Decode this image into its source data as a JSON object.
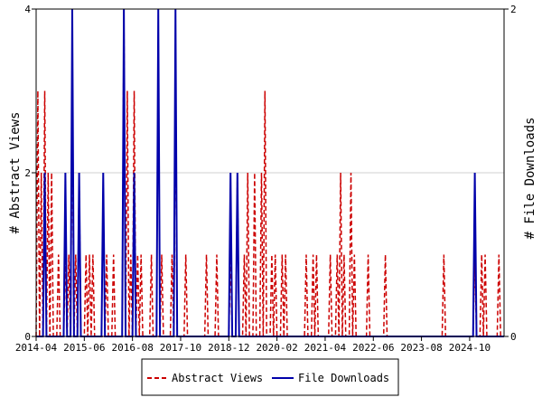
{
  "chart_data": {
    "type": "line",
    "y_left_label": "# Abstract Views",
    "y_right_label": "# File Downloads",
    "y_left_range": [
      0,
      4
    ],
    "y_right_range": [
      0,
      2
    ],
    "y_left_ticks": [
      "0",
      "2",
      "4"
    ],
    "y_right_ticks": [
      "0",
      "2"
    ],
    "x_start": "2014-04",
    "x_end": "2025-07",
    "x_ticks": [
      "2014-04",
      "2015-06",
      "2016-08",
      "2017-10",
      "2018-12",
      "2020-02",
      "2021-04",
      "2022-06",
      "2023-08",
      "2024-10"
    ],
    "legend": {
      "placement": "bottom"
    },
    "colors": {
      "views": "#cc0000",
      "downloads": "#0000aa"
    },
    "series": [
      {
        "name": "Abstract Views",
        "axis": "left",
        "style": "dashed",
        "points": [
          [
            "2014-04",
            3
          ],
          [
            "2014-05",
            2
          ],
          [
            "2014-06",
            3
          ],
          [
            "2014-07",
            2
          ],
          [
            "2014-08",
            2
          ],
          [
            "2014-09",
            0
          ],
          [
            "2014-10",
            1
          ],
          [
            "2014-11",
            0
          ],
          [
            "2014-12",
            1
          ],
          [
            "2015-01",
            1
          ],
          [
            "2015-02",
            3
          ],
          [
            "2015-03",
            1
          ],
          [
            "2015-04",
            2
          ],
          [
            "2015-05",
            0
          ],
          [
            "2015-06",
            1
          ],
          [
            "2015-07",
            1
          ],
          [
            "2015-08",
            1
          ],
          [
            "2015-09",
            0
          ],
          [
            "2015-10",
            0
          ],
          [
            "2015-11",
            0
          ],
          [
            "2015-12",
            1
          ],
          [
            "2016-01",
            0
          ],
          [
            "2016-02",
            1
          ],
          [
            "2016-03",
            0
          ],
          [
            "2016-04",
            0
          ],
          [
            "2016-05",
            4
          ],
          [
            "2016-06",
            3
          ],
          [
            "2016-07",
            1
          ],
          [
            "2016-08",
            3
          ],
          [
            "2016-09",
            1
          ],
          [
            "2016-10",
            1
          ],
          [
            "2016-11",
            0
          ],
          [
            "2016-12",
            0
          ],
          [
            "2017-01",
            1
          ],
          [
            "2017-02",
            0
          ],
          [
            "2017-03",
            0
          ],
          [
            "2017-04",
            1
          ],
          [
            "2017-05",
            0
          ],
          [
            "2017-06",
            0
          ],
          [
            "2017-07",
            1
          ],
          [
            "2017-08",
            3
          ],
          [
            "2017-09",
            0
          ],
          [
            "2017-10",
            0
          ],
          [
            "2017-11",
            1
          ],
          [
            "2017-12",
            0
          ],
          [
            "2018-01",
            0
          ],
          [
            "2018-02",
            0
          ],
          [
            "2018-03",
            0
          ],
          [
            "2018-04",
            0
          ],
          [
            "2018-05",
            1
          ],
          [
            "2018-06",
            0
          ],
          [
            "2018-07",
            0
          ],
          [
            "2018-08",
            1
          ],
          [
            "2018-09",
            0
          ],
          [
            "2018-10",
            0
          ],
          [
            "2018-11",
            0
          ],
          [
            "2018-12",
            1
          ],
          [
            "2019-01",
            0
          ],
          [
            "2019-02",
            2
          ],
          [
            "2019-03",
            0
          ],
          [
            "2019-04",
            1
          ],
          [
            "2019-05",
            2
          ],
          [
            "2019-06",
            0
          ],
          [
            "2019-07",
            2
          ],
          [
            "2019-08",
            0
          ],
          [
            "2019-09",
            2
          ],
          [
            "2019-10",
            3
          ],
          [
            "2019-11",
            0
          ],
          [
            "2019-12",
            1
          ],
          [
            "2020-01",
            1
          ],
          [
            "2020-02",
            0
          ],
          [
            "2020-03",
            1
          ],
          [
            "2020-04",
            1
          ],
          [
            "2020-05",
            0
          ],
          [
            "2020-06",
            0
          ],
          [
            "2020-07",
            0
          ],
          [
            "2020-08",
            0
          ],
          [
            "2020-09",
            0
          ],
          [
            "2020-10",
            1
          ],
          [
            "2020-11",
            0
          ],
          [
            "2020-12",
            1
          ],
          [
            "2021-01",
            1
          ],
          [
            "2021-02",
            0
          ],
          [
            "2021-03",
            0
          ],
          [
            "2021-04",
            0
          ],
          [
            "2021-05",
            1
          ],
          [
            "2021-06",
            0
          ],
          [
            "2021-07",
            1
          ],
          [
            "2021-08",
            2
          ],
          [
            "2021-09",
            1
          ],
          [
            "2021-10",
            0
          ],
          [
            "2021-11",
            2
          ],
          [
            "2021-12",
            1
          ],
          [
            "2022-01",
            0
          ],
          [
            "2022-02",
            0
          ],
          [
            "2022-03",
            0
          ],
          [
            "2022-04",
            1
          ],
          [
            "2022-05",
            0
          ],
          [
            "2022-06",
            0
          ],
          [
            "2022-07",
            0
          ],
          [
            "2022-08",
            0
          ],
          [
            "2022-09",
            1
          ],
          [
            "2022-10",
            0
          ],
          [
            "2022-11",
            0
          ],
          [
            "2022-12",
            0
          ],
          [
            "2023-01",
            0
          ],
          [
            "2023-02",
            0
          ],
          [
            "2023-03",
            0
          ],
          [
            "2023-04",
            0
          ],
          [
            "2023-05",
            0
          ],
          [
            "2023-06",
            0
          ],
          [
            "2023-07",
            0
          ],
          [
            "2023-08",
            0
          ],
          [
            "2023-09",
            0
          ],
          [
            "2023-10",
            0
          ],
          [
            "2023-11",
            0
          ],
          [
            "2023-12",
            0
          ],
          [
            "2024-01",
            0
          ],
          [
            "2024-02",
            1
          ],
          [
            "2024-03",
            0
          ],
          [
            "2024-04",
            0
          ],
          [
            "2024-05",
            0
          ],
          [
            "2024-06",
            0
          ],
          [
            "2024-07",
            0
          ],
          [
            "2024-08",
            0
          ],
          [
            "2024-09",
            0
          ],
          [
            "2024-10",
            0
          ],
          [
            "2024-11",
            1
          ],
          [
            "2024-12",
            0
          ],
          [
            "2025-01",
            1
          ],
          [
            "2025-02",
            1
          ],
          [
            "2025-03",
            0
          ],
          [
            "2025-04",
            0
          ],
          [
            "2025-05",
            0
          ],
          [
            "2025-06",
            1
          ],
          [
            "2025-07",
            0
          ]
        ]
      },
      {
        "name": "File Downloads",
        "axis": "right",
        "style": "solid",
        "points": [
          [
            "2014-04",
            0
          ],
          [
            "2014-05",
            0
          ],
          [
            "2014-06",
            1
          ],
          [
            "2014-07",
            0
          ],
          [
            "2014-08",
            0
          ],
          [
            "2014-09",
            0
          ],
          [
            "2014-10",
            0
          ],
          [
            "2014-11",
            0
          ],
          [
            "2014-12",
            1
          ],
          [
            "2015-01",
            0
          ],
          [
            "2015-02",
            2
          ],
          [
            "2015-03",
            0
          ],
          [
            "2015-04",
            1
          ],
          [
            "2015-05",
            0
          ],
          [
            "2015-06",
            0
          ],
          [
            "2015-07",
            0
          ],
          [
            "2015-08",
            0
          ],
          [
            "2015-09",
            0
          ],
          [
            "2015-10",
            0
          ],
          [
            "2015-11",
            1
          ],
          [
            "2015-12",
            0
          ],
          [
            "2016-01",
            0
          ],
          [
            "2016-02",
            0
          ],
          [
            "2016-03",
            0
          ],
          [
            "2016-04",
            0
          ],
          [
            "2016-05",
            2
          ],
          [
            "2016-06",
            0
          ],
          [
            "2016-07",
            0
          ],
          [
            "2016-08",
            1
          ],
          [
            "2016-09",
            0
          ],
          [
            "2016-10",
            0
          ],
          [
            "2016-11",
            0
          ],
          [
            "2016-12",
            0
          ],
          [
            "2017-01",
            0
          ],
          [
            "2017-02",
            0
          ],
          [
            "2017-03",
            2
          ],
          [
            "2017-04",
            0
          ],
          [
            "2017-05",
            0
          ],
          [
            "2017-06",
            0
          ],
          [
            "2017-07",
            0
          ],
          [
            "2017-08",
            2
          ],
          [
            "2017-09",
            0
          ],
          [
            "2017-10",
            0
          ],
          [
            "2017-11",
            0
          ],
          [
            "2017-12",
            0
          ],
          [
            "2018-01",
            0
          ],
          [
            "2018-02",
            0
          ],
          [
            "2018-03",
            0
          ],
          [
            "2018-04",
            0
          ],
          [
            "2018-05",
            0
          ],
          [
            "2018-06",
            0
          ],
          [
            "2018-07",
            0
          ],
          [
            "2018-08",
            0
          ],
          [
            "2018-09",
            0
          ],
          [
            "2018-10",
            0
          ],
          [
            "2018-11",
            0
          ],
          [
            "2018-12",
            1
          ],
          [
            "2019-01",
            0
          ],
          [
            "2019-02",
            1
          ],
          [
            "2019-03",
            0
          ],
          [
            "2019-04",
            0
          ],
          [
            "2019-05",
            0
          ],
          [
            "2019-06",
            0
          ],
          [
            "2019-07",
            0
          ],
          [
            "2019-08",
            0
          ],
          [
            "2019-09",
            0
          ],
          [
            "2019-10",
            0
          ],
          [
            "2019-11",
            0
          ],
          [
            "2019-12",
            0
          ],
          [
            "2020-01",
            0
          ],
          [
            "2020-02",
            0
          ],
          [
            "2020-03",
            0
          ],
          [
            "2020-04",
            0
          ],
          [
            "2020-05",
            0
          ],
          [
            "2020-06",
            0
          ],
          [
            "2020-07",
            0
          ],
          [
            "2020-08",
            0
          ],
          [
            "2020-09",
            0
          ],
          [
            "2020-10",
            0
          ],
          [
            "2020-11",
            0
          ],
          [
            "2020-12",
            0
          ],
          [
            "2021-01",
            0
          ],
          [
            "2021-02",
            0
          ],
          [
            "2021-03",
            0
          ],
          [
            "2021-04",
            0
          ],
          [
            "2021-05",
            0
          ],
          [
            "2021-06",
            0
          ],
          [
            "2021-07",
            0
          ],
          [
            "2021-08",
            0
          ],
          [
            "2021-09",
            0
          ],
          [
            "2021-10",
            0
          ],
          [
            "2021-11",
            0
          ],
          [
            "2021-12",
            0
          ],
          [
            "2022-01",
            0
          ],
          [
            "2022-02",
            0
          ],
          [
            "2022-03",
            0
          ],
          [
            "2022-04",
            0
          ],
          [
            "2022-05",
            0
          ],
          [
            "2022-06",
            0
          ],
          [
            "2022-07",
            0
          ],
          [
            "2022-08",
            0
          ],
          [
            "2022-09",
            0
          ],
          [
            "2022-10",
            0
          ],
          [
            "2022-11",
            0
          ],
          [
            "2022-12",
            0
          ],
          [
            "2023-01",
            0
          ],
          [
            "2023-02",
            0
          ],
          [
            "2023-03",
            0
          ],
          [
            "2023-04",
            0
          ],
          [
            "2023-05",
            0
          ],
          [
            "2023-06",
            0
          ],
          [
            "2023-07",
            0
          ],
          [
            "2023-08",
            0
          ],
          [
            "2023-09",
            0
          ],
          [
            "2023-10",
            0
          ],
          [
            "2023-11",
            0
          ],
          [
            "2023-12",
            0
          ],
          [
            "2024-01",
            0
          ],
          [
            "2024-02",
            0
          ],
          [
            "2024-03",
            0
          ],
          [
            "2024-04",
            0
          ],
          [
            "2024-05",
            0
          ],
          [
            "2024-06",
            0
          ],
          [
            "2024-07",
            0
          ],
          [
            "2024-08",
            0
          ],
          [
            "2024-09",
            0
          ],
          [
            "2024-10",
            0
          ],
          [
            "2024-11",
            1
          ],
          [
            "2024-12",
            0
          ],
          [
            "2025-01",
            0
          ],
          [
            "2025-02",
            0
          ],
          [
            "2025-03",
            0
          ],
          [
            "2025-04",
            0
          ],
          [
            "2025-05",
            0
          ],
          [
            "2025-06",
            0
          ],
          [
            "2025-07",
            0
          ]
        ]
      }
    ]
  }
}
